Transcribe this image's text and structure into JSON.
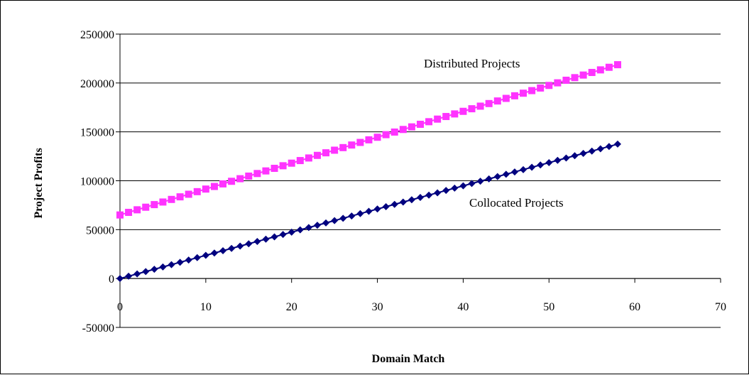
{
  "chart_data": {
    "type": "line",
    "title": "",
    "xlabel": "Domain Match",
    "ylabel": "Project Profits",
    "xlim": [
      0,
      70
    ],
    "ylim": [
      -50000,
      250000
    ],
    "xticks": [
      0,
      10,
      20,
      30,
      40,
      50,
      60,
      70
    ],
    "yticks": [
      -50000,
      0,
      50000,
      100000,
      150000,
      200000,
      250000
    ],
    "grid": "horizontal",
    "legend": "none",
    "series": [
      {
        "name": "Distributed Projects",
        "color": "#ff33ff",
        "marker": "square",
        "x": [
          0,
          1,
          2,
          3,
          4,
          5,
          6,
          7,
          8,
          9,
          10,
          11,
          12,
          13,
          14,
          15,
          16,
          17,
          18,
          19,
          20,
          21,
          22,
          23,
          24,
          25,
          26,
          27,
          28,
          29,
          30,
          31,
          32,
          33,
          34,
          35,
          36,
          37,
          38,
          39,
          40,
          41,
          42,
          43,
          44,
          45,
          46,
          47,
          48,
          49,
          50,
          51,
          52,
          53,
          54,
          55,
          56,
          57,
          58
        ],
        "y": [
          65000,
          67650,
          70300,
          72950,
          75600,
          78250,
          80900,
          83550,
          86200,
          88850,
          91500,
          94150,
          96800,
          99450,
          102100,
          104750,
          107400,
          110050,
          112700,
          115350,
          118000,
          120650,
          123300,
          125950,
          128600,
          131250,
          133900,
          136550,
          139200,
          141850,
          144500,
          147150,
          149800,
          152450,
          155100,
          157750,
          160400,
          163050,
          165700,
          168350,
          171000,
          173650,
          176300,
          178950,
          181600,
          184250,
          186900,
          189550,
          192200,
          194850,
          197500,
          200150,
          202800,
          205450,
          208100,
          210750,
          213400,
          216050,
          218700
        ]
      },
      {
        "name": "Collocated Projects",
        "color": "#00007f",
        "marker": "diamond",
        "x": [
          0,
          1,
          2,
          3,
          4,
          5,
          6,
          7,
          8,
          9,
          10,
          11,
          12,
          13,
          14,
          15,
          16,
          17,
          18,
          19,
          20,
          21,
          22,
          23,
          24,
          25,
          26,
          27,
          28,
          29,
          30,
          31,
          32,
          33,
          34,
          35,
          36,
          37,
          38,
          39,
          40,
          41,
          42,
          43,
          44,
          45,
          46,
          47,
          48,
          49,
          50,
          51,
          52,
          53,
          54,
          55,
          56,
          57,
          58
        ],
        "y": [
          0,
          2370,
          4740,
          7110,
          9480,
          11850,
          14220,
          16590,
          18960,
          21330,
          23700,
          26070,
          28440,
          30810,
          33180,
          35550,
          37920,
          40290,
          42660,
          45030,
          47400,
          49770,
          52140,
          54510,
          56880,
          59250,
          61620,
          63990,
          66360,
          68730,
          71100,
          73470,
          75840,
          78210,
          80580,
          82950,
          85320,
          87690,
          90060,
          92430,
          94800,
          97170,
          99540,
          101910,
          104280,
          106650,
          109020,
          111390,
          113760,
          116130,
          118500,
          120870,
          123240,
          125610,
          127980,
          130350,
          132720,
          135090,
          137460
        ]
      }
    ]
  }
}
